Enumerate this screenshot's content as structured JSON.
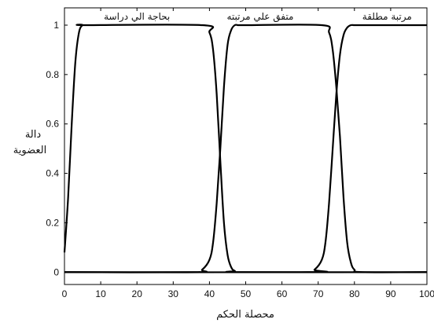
{
  "chart_data": {
    "type": "line",
    "title": "",
    "xlabel": "محصلة الحكم",
    "ylabel_lines": [
      "دالة",
      "العضوية"
    ],
    "xlim": [
      0,
      100
    ],
    "ylim": [
      -0.05,
      1.07
    ],
    "x_ticks": [
      0,
      10,
      20,
      30,
      40,
      50,
      60,
      70,
      80,
      90,
      100
    ],
    "y_ticks": [
      0,
      0.2,
      0.4,
      0.6,
      0.8,
      1
    ],
    "x_tick_labels": [
      "0",
      "10",
      "20",
      "30",
      "40",
      "50",
      "60",
      "70",
      "80",
      "90",
      "100"
    ],
    "y_tick_labels": [
      "0",
      "0.2",
      "0.4",
      "0.6",
      "0.8",
      "1"
    ],
    "grid": false,
    "legend": "none",
    "line_color": "#000000",
    "series": [
      {
        "name": "بحاجة الي دراسة",
        "x": [
          0,
          1,
          2,
          3,
          4,
          5,
          6,
          38,
          40,
          41,
          42,
          43,
          44,
          45,
          46,
          47,
          49,
          100
        ],
        "y": [
          0.08,
          0.3,
          0.6,
          0.85,
          0.97,
          1.0,
          1.0,
          1.0,
          0.97,
          0.9,
          0.72,
          0.45,
          0.2,
          0.07,
          0.02,
          0.005,
          0,
          0
        ]
      },
      {
        "name": "متفق علي مرتبته",
        "x": [
          0,
          36,
          38,
          40,
          41,
          42,
          43,
          44,
          45,
          46,
          47,
          48,
          50,
          71,
          73,
          74,
          75,
          76,
          77,
          78,
          79,
          80,
          82,
          100
        ],
        "y": [
          0,
          0,
          0.01,
          0.05,
          0.12,
          0.28,
          0.5,
          0.75,
          0.92,
          0.98,
          1.0,
          1.0,
          1.0,
          1.0,
          0.97,
          0.9,
          0.75,
          0.55,
          0.3,
          0.12,
          0.04,
          0.01,
          0,
          0
        ]
      },
      {
        "name": "مرتبة مطلقة",
        "x": [
          0,
          67,
          69,
          71,
          72,
          73,
          74,
          75,
          76,
          77,
          78,
          79,
          80,
          82,
          100
        ],
        "y": [
          0,
          0,
          0.01,
          0.05,
          0.12,
          0.28,
          0.5,
          0.72,
          0.88,
          0.96,
          0.99,
          1.0,
          1.0,
          1.0,
          1.0
        ]
      }
    ]
  }
}
